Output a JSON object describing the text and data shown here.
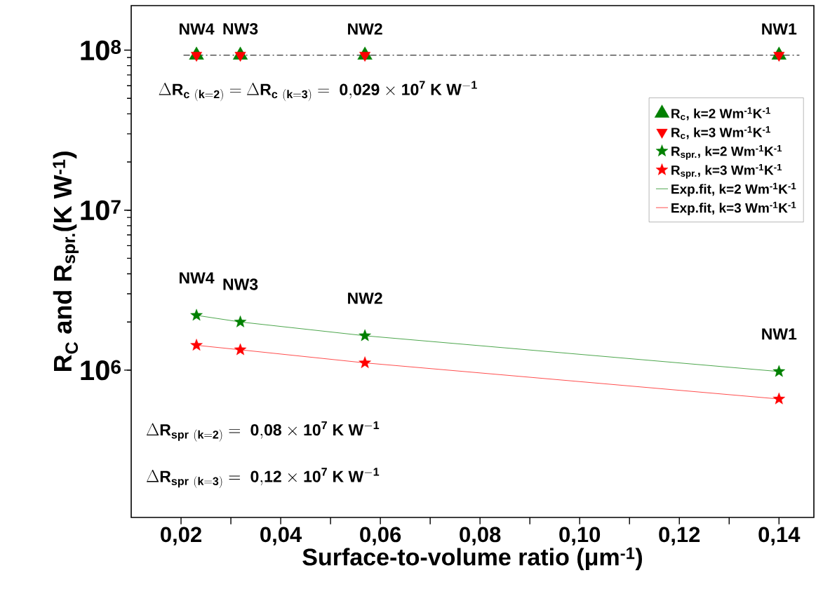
{
  "chart_data": {
    "type": "scatter",
    "xlabel": "Surface-to-volume ratio (μm$^{-1}$)",
    "ylabel": "R$_{C}$ and R$_{spr.}$(K W$^{-1}$)",
    "log": "y",
    "xlim": [
      0.01,
      0.147
    ],
    "ylim": [
      120000,
      190000000
    ],
    "xticks": [
      {
        "value": 0.02,
        "label": "0,02"
      },
      {
        "value": 0.03,
        "label": null
      },
      {
        "value": 0.04,
        "label": "0,04"
      },
      {
        "value": 0.05,
        "label": null
      },
      {
        "value": 0.06,
        "label": "0,06"
      },
      {
        "value": 0.07,
        "label": null
      },
      {
        "value": 0.08,
        "label": "0,08"
      },
      {
        "value": 0.09,
        "label": null
      },
      {
        "value": 0.1,
        "label": "0,10"
      },
      {
        "value": 0.11,
        "label": null
      },
      {
        "value": 0.12,
        "label": "0,12"
      },
      {
        "value": 0.13,
        "label": null
      },
      {
        "value": 0.14,
        "label": "0,14"
      }
    ],
    "yticks": [
      {
        "value": 1000000,
        "label": "10$^{6}$"
      },
      {
        "value": 10000000,
        "label": "10$^{7}$"
      },
      {
        "value": 100000000,
        "label": "10$^{8}$"
      }
    ],
    "x": [
      0.0231,
      0.0319,
      0.0569,
      0.14
    ],
    "legend": "top right",
    "series": [
      {
        "name": "R$_{c}$, k=2 Wm$^{-1}$K$^{-1}$",
        "marker": "triangle",
        "color": "#008000",
        "values": [
          93000000,
          93000000,
          93000000,
          93000000
        ]
      },
      {
        "name": "R$_{c}$, k=3 Wm$^{-1}$K$^{-1}$",
        "marker": "triangle-down",
        "color": "#ff0000",
        "values": [
          93000000,
          93000000,
          93000000,
          93000000
        ]
      },
      {
        "name": "R$_{spr.}$, k=2 Wm$^{-1}$K$^{-1}$",
        "marker": "star",
        "color": "#008000",
        "values": [
          2200000,
          2000000,
          1640000,
          980000
        ]
      },
      {
        "name": "R$_{spr.}$, k=3 Wm$^{-1}$K$^{-1}$",
        "marker": "star",
        "color": "#ff0000",
        "values": [
          1430000,
          1340000,
          1110000,
          660000
        ]
      },
      {
        "name": "Exp.fit, k=2 Wm$^{-1}$K$^{-1}$",
        "type": "line",
        "marker": "none",
        "line_style": "solid",
        "color": "#4ca64c",
        "values": [
          2200000,
          2000000,
          1640000,
          980000
        ]
      },
      {
        "name": "Exp.fit, k=3 Wm$^{-1}$K$^{-1}$",
        "type": "line",
        "marker": "none",
        "line_style": "solid",
        "color": "#ff4d4d",
        "values": [
          1430000,
          1340000,
          1110000,
          660000
        ]
      },
      {
        "type": "line",
        "marker": "none",
        "line_style": "dashdot",
        "color": "#000000",
        "x": [
          0.0205,
          0.1441
        ],
        "values": [
          93000000,
          93000000
        ]
      }
    ],
    "annotations": [
      {
        "text": "NW4",
        "x": 0.0231,
        "y": 93000000
      },
      {
        "text": "NW3",
        "x": 0.0319,
        "y": 93000000
      },
      {
        "text": "NW2",
        "x": 0.0569,
        "y": 93000000
      },
      {
        "text": "NW1",
        "x": 0.14,
        "y": 93000000
      },
      {
        "text": "NW4",
        "x": 0.0231,
        "y": 2200000
      },
      {
        "text": "NW3",
        "x": 0.0319,
        "y": 2000000
      },
      {
        "text": "NW2",
        "x": 0.0569,
        "y": 1640000
      },
      {
        "text": "NW1",
        "x": 0.14,
        "y": 980000
      },
      "\\Delta \\mathbf{R_{c\\ (k=2)}=}\\ \\Delta \\mathbf{R_{c\\ (k=3)}=\\ 0{,}029}\\times\\mathbf{10^{7}\\ K\\ W^{-1}}",
      "\\Delta \\mathbf{R_{spr\\ (k=2)}=\\ 0{,}08}\\times\\mathbf{10^{7}\\ K\\ W^{-1}}",
      "\\Delta \\mathbf{R_{spr\\ (k=3)}=\\ 0{,}12}\\times\\mathbf{10^{7}\\ K\\ W^{-1}}"
    ]
  }
}
